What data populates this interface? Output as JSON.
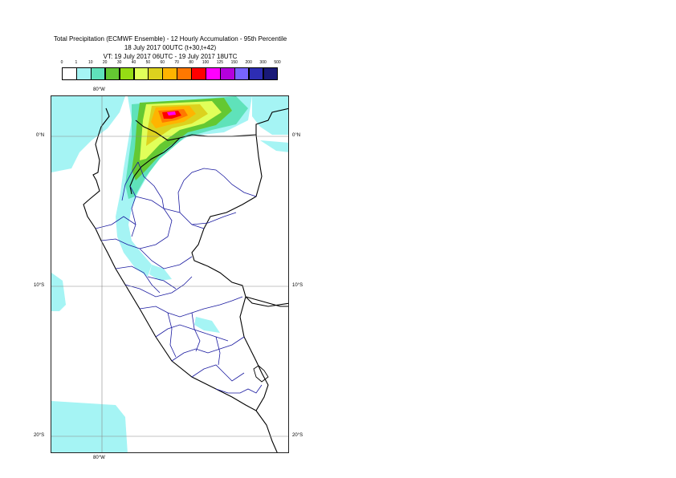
{
  "title": {
    "line1": "Total Precipitation (ECMWF Ensemble) - 12 Hourly Accumulation - 95th Percentile",
    "line2": "18 July 2017 00UTC (t+30,t+42)",
    "line3": "VT: 19 July 2017 06UTC - 19 July 2017 18UTC"
  },
  "legend": {
    "labels": [
      "0",
      "1",
      "10",
      "20",
      "30",
      "40",
      "50",
      "60",
      "70",
      "80",
      "100",
      "125",
      "150",
      "200",
      "300",
      "500"
    ],
    "colors": [
      "#ffffff",
      "#a5f4f4",
      "#5fe2ba",
      "#64c832",
      "#96dc14",
      "#e1ff5a",
      "#dcd21e",
      "#ffb400",
      "#ff7800",
      "#ff0000",
      "#ff00ff",
      "#b400dc",
      "#7864ff",
      "#2d2db4",
      "#191978",
      "#0a0a50"
    ]
  },
  "map": {
    "lon_labels": {
      "top": "80°W",
      "bottom": "80°W"
    },
    "lat_labels": {
      "left": [
        "0°N",
        "10°S",
        "20°S"
      ],
      "right": [
        "0°N",
        "10°S",
        "20°S"
      ]
    }
  }
}
